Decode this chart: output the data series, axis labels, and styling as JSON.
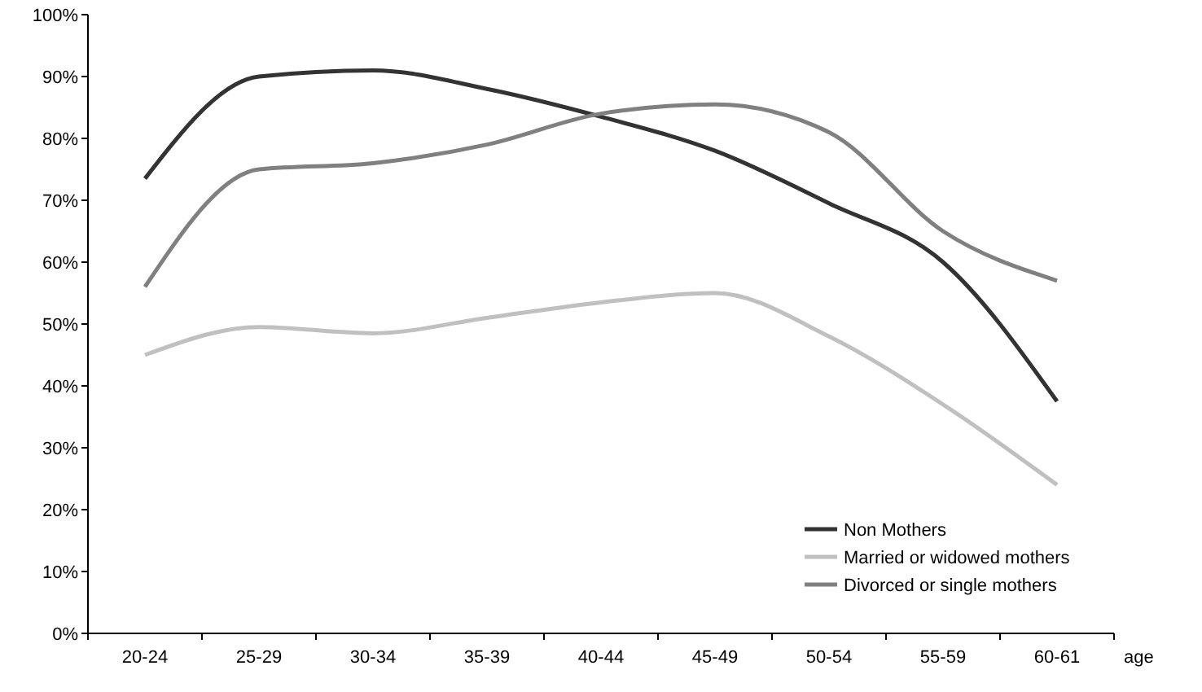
{
  "chart_data": {
    "type": "line",
    "xlabel": "age",
    "categories": [
      "20-24",
      "25-29",
      "30-34",
      "35-39",
      "40-44",
      "45-49",
      "50-54",
      "55-59",
      "60-61"
    ],
    "series": [
      {
        "name": "Non Mothers",
        "color": "#333333",
        "values": [
          73.5,
          90,
          91,
          88,
          83.5,
          78,
          69.5,
          60,
          37.5
        ]
      },
      {
        "name": "Married or widowed mothers",
        "color": "#c0c0c0",
        "values": [
          45,
          49.5,
          48.5,
          51,
          53.5,
          55,
          48,
          37,
          24
        ]
      },
      {
        "name": "Divorced or single mothers",
        "color": "#808080",
        "values": [
          56,
          75,
          76,
          79,
          84,
          85.5,
          81,
          65,
          57
        ]
      }
    ],
    "ylim": [
      0,
      100
    ],
    "yticks": [
      {
        "value": 0,
        "label": "0%"
      },
      {
        "value": 10,
        "label": "10%"
      },
      {
        "value": 20,
        "label": "20%"
      },
      {
        "value": 30,
        "label": "30%"
      },
      {
        "value": 40,
        "label": "40%"
      },
      {
        "value": 50,
        "label": "50%"
      },
      {
        "value": 60,
        "label": "60%"
      },
      {
        "value": 70,
        "label": "70%"
      },
      {
        "value": 80,
        "label": "80%"
      },
      {
        "value": 90,
        "label": "90%"
      },
      {
        "value": 100,
        "label": "100%"
      }
    ],
    "grid": false,
    "legend": "bottom right",
    "marker": "none",
    "line_style": "solid"
  }
}
